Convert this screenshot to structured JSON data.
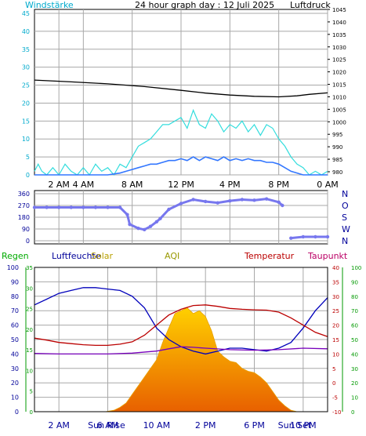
{
  "title": "24 hour graph day : 12 Juli 2025",
  "colors": {
    "frame": "#000000",
    "grid": "#a8a8a8",
    "wind_axis": "#00aacc",
    "gust": "#33dddd",
    "wind_avg": "#3377ff",
    "pressure": "#000000",
    "direction": "#7777ee",
    "humidity": "#0000bb",
    "temperature": "#bb0000",
    "dewpoint": "#7700bb",
    "rain_axis": "#000099",
    "solar_top": "#ffd000",
    "solar_bottom": "#e86000",
    "uv_axis": "#009900",
    "aqi_label": "#999900",
    "regen_label": "#00aa00",
    "luftfeuchte_label": "#000099",
    "solar_label": "#b8a000",
    "temperatur_label": "#bb0000",
    "taupunkt_label": "#bb0066"
  },
  "chart_data": [
    {
      "id": "wind_pressure",
      "type": "line",
      "title": "24 hour graph day : 12 Juli 2025",
      "left_axis_label": "Windstärke",
      "right_axis_label": "Luftdruck",
      "x_ticks": [
        "2 AM",
        "4 AM",
        "8 AM",
        "12 PM",
        "4 PM",
        "8 PM",
        "0 AM"
      ],
      "x_tick_hours": [
        2,
        4,
        8,
        12,
        16,
        20,
        24
      ],
      "left_ylim": [
        0,
        45
      ],
      "left_ticks": [
        0,
        5,
        10,
        15,
        20,
        25,
        30,
        35,
        40,
        45
      ],
      "right_ylim": [
        980,
        1045
      ],
      "right_ticks": [
        980,
        985,
        990,
        995,
        1000,
        1005,
        1010,
        1015,
        1020,
        1025,
        1030,
        1035,
        1040,
        1045
      ],
      "grid": true,
      "series": [
        {
          "axis": "right",
          "x": [
            0,
            3,
            6,
            9,
            12,
            14,
            16,
            18,
            20,
            21.5,
            22.5,
            24
          ],
          "y": [
            1016.7,
            1016.0,
            1015.2,
            1014.1,
            1012.6,
            1011.5,
            1010.7,
            1010.2,
            1010.0,
            1010.4,
            1011.0,
            1011.6
          ]
        },
        {
          "axis": "left",
          "x": [
            0,
            0.3,
            0.6,
            1,
            1.5,
            2,
            2.5,
            3,
            3.5,
            4,
            4.5,
            5,
            5.5,
            6,
            6.5,
            7,
            7.5,
            8,
            8.5,
            9,
            9.5,
            10,
            10.5,
            11,
            11.5,
            12,
            12.5,
            13,
            13.5,
            14,
            14.5,
            15,
            15.5,
            16,
            16.5,
            17,
            17.5,
            18,
            18.5,
            19,
            19.5,
            20,
            20.5,
            21,
            21.5,
            22,
            22.5,
            23,
            23.5,
            24
          ],
          "y": [
            1,
            3,
            1,
            0,
            2,
            0,
            3,
            1,
            0,
            2,
            0,
            3,
            1,
            2,
            0,
            3,
            2,
            5,
            8,
            9,
            10,
            12,
            14,
            14,
            15,
            16,
            13,
            18,
            14,
            13,
            17,
            15,
            12,
            14,
            13,
            15,
            12,
            14,
            11,
            14,
            13,
            10,
            8,
            5,
            3,
            2,
            0,
            1,
            0,
            1
          ]
        },
        {
          "axis": "left",
          "x": [
            0,
            1,
            2,
            3,
            4,
            5,
            6,
            7,
            7.5,
            8,
            8.5,
            9,
            9.5,
            10,
            10.5,
            11,
            11.5,
            12,
            12.5,
            13,
            13.5,
            14,
            14.5,
            15,
            15.5,
            16,
            16.5,
            17,
            17.5,
            18,
            18.5,
            19,
            19.5,
            20,
            20.5,
            21,
            22,
            23,
            24
          ],
          "y": [
            0,
            0,
            0,
            0,
            0,
            0,
            0,
            0.5,
            1,
            1.5,
            2,
            2.5,
            3,
            3,
            3.5,
            4,
            4,
            4.5,
            4,
            5,
            4,
            5,
            4.5,
            4,
            5,
            4,
            4.5,
            4,
            4.5,
            4,
            4,
            3.5,
            3.5,
            3,
            2,
            1,
            0,
            0,
            0
          ]
        }
      ]
    },
    {
      "id": "wind_direction",
      "type": "scatter",
      "left_ticks": [
        0,
        90,
        180,
        270,
        360
      ],
      "right_labels": [
        "N",
        "W",
        "S",
        "O",
        "N"
      ],
      "ylim": [
        0,
        360
      ],
      "x": [
        0,
        1,
        2,
        3,
        4,
        5,
        6,
        7,
        7.6,
        7.8,
        8.5,
        9,
        9.5,
        10,
        10.3,
        11,
        12,
        13,
        14,
        15,
        16,
        17,
        18,
        19,
        20,
        20.3,
        21,
        22,
        23,
        24
      ],
      "y": [
        255,
        255,
        255,
        255,
        255,
        255,
        255,
        255,
        200,
        125,
        95,
        85,
        110,
        145,
        170,
        240,
        285,
        315,
        300,
        290,
        305,
        315,
        310,
        320,
        295,
        270,
        20,
        30,
        30,
        30
      ]
    },
    {
      "id": "climate",
      "type": "line",
      "legend": [
        "Regen",
        "Luftfeuchte",
        "Solar",
        "AQI",
        "Temperatur",
        "Taupunkt"
      ],
      "x_ticks": [
        "2 AM",
        "6 AM",
        "10 AM",
        "2 PM",
        "6 PM",
        "10 PM"
      ],
      "x_tick_hours": [
        2,
        6,
        10,
        14,
        18,
        22
      ],
      "sun_labels": [
        "Sun Rise",
        "Sun Set"
      ],
      "sun_hours": [
        5.9,
        21.3
      ],
      "left_humidity_ticks": [
        0,
        10,
        20,
        30,
        40,
        50,
        60,
        70,
        80,
        90,
        100
      ],
      "left_rain_ticks": [
        0,
        5,
        10,
        15,
        20,
        25,
        30,
        35
      ],
      "right_temp_ticks": [
        -10,
        -5,
        0,
        5,
        10,
        15,
        20,
        25,
        30,
        35,
        40
      ],
      "right_uv_ticks": [
        0,
        10,
        20,
        30,
        40,
        50,
        60,
        70,
        80,
        90,
        100
      ],
      "humidity_ylim": [
        0,
        100
      ],
      "temp_ylim": [
        -10,
        40
      ],
      "grid": true,
      "series": [
        {
          "name": "Luftfeuchte",
          "x": [
            0,
            1,
            2,
            3,
            4,
            5,
            6,
            7,
            8,
            9,
            10,
            11,
            12,
            13,
            14,
            15,
            16,
            17,
            18,
            19,
            20,
            21,
            22,
            23,
            24
          ],
          "y": [
            74,
            78,
            82,
            84,
            86,
            86,
            85,
            84,
            80,
            72,
            58,
            50,
            45,
            42,
            40,
            42,
            44,
            44,
            43,
            42,
            44,
            48,
            58,
            70,
            79
          ]
        },
        {
          "name": "Temperatur",
          "x": [
            0,
            1,
            2,
            3,
            4,
            5,
            6,
            7,
            8,
            9,
            10,
            11,
            12,
            13,
            14,
            15,
            16,
            17,
            18,
            19,
            20,
            21,
            22,
            23,
            24
          ],
          "y": [
            15.5,
            14.8,
            14.0,
            13.6,
            13.2,
            13.0,
            13.0,
            13.4,
            14.2,
            16.5,
            20,
            23.5,
            25.5,
            26.8,
            27.0,
            26.5,
            25.8,
            25.5,
            25.3,
            25.2,
            24.5,
            22.5,
            20,
            17.5,
            16.0
          ]
        },
        {
          "name": "Taupunkt",
          "x": [
            0,
            2,
            4,
            6,
            8,
            10,
            11,
            12,
            13,
            14,
            16,
            18,
            20,
            22,
            24
          ],
          "y": [
            10.2,
            10.0,
            10.0,
            10.0,
            10.3,
            11.0,
            11.8,
            12.5,
            12.3,
            12.0,
            11.5,
            11.3,
            11.5,
            12.0,
            11.8
          ]
        },
        {
          "name": "Solar",
          "x": [
            5.8,
            6.5,
            7,
            7.5,
            8,
            8.5,
            9,
            9.5,
            10,
            10.5,
            11,
            11.5,
            12,
            12.5,
            13,
            13.5,
            14,
            14.5,
            15,
            15.5,
            16,
            16.5,
            17,
            17.5,
            18,
            18.5,
            19,
            19.5,
            20,
            20.5,
            21,
            21.5
          ],
          "y": [
            0,
            1,
            3,
            6,
            12,
            18,
            24,
            30,
            36,
            48,
            58,
            68,
            70,
            72,
            68,
            70,
            66,
            56,
            42,
            38,
            35,
            34,
            30,
            28,
            27,
            24,
            20,
            14,
            8,
            4,
            1,
            0
          ]
        }
      ]
    }
  ]
}
